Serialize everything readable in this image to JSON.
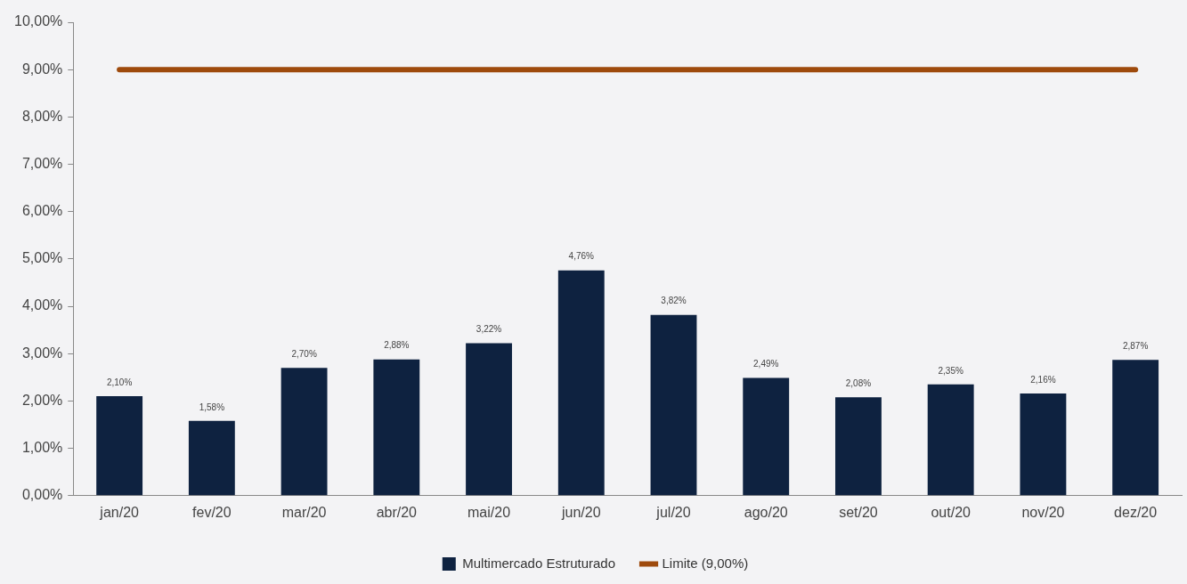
{
  "chart_data": {
    "type": "bar",
    "categories": [
      "jan/20",
      "fev/20",
      "mar/20",
      "abr/20",
      "mai/20",
      "jun/20",
      "jul/20",
      "ago/20",
      "set/20",
      "out/20",
      "nov/20",
      "dez/20"
    ],
    "series": [
      {
        "name": "Multimercado Estruturado",
        "color": "#0e2240",
        "values": [
          2.1,
          1.58,
          2.7,
          2.88,
          3.22,
          4.76,
          3.82,
          2.49,
          2.08,
          2.35,
          2.16,
          2.87
        ],
        "value_labels": [
          "2,10%",
          "1,58%",
          "2,70%",
          "2,88%",
          "3,22%",
          "4,76%",
          "3,82%",
          "2,49%",
          "2,08%",
          "2,35%",
          "2,16%",
          "2,87%"
        ]
      },
      {
        "name": "Limite (9,00%)",
        "type": "line",
        "color": "#9e4a0c",
        "values": [
          9,
          9,
          9,
          9,
          9,
          9,
          9,
          9,
          9,
          9,
          9,
          9
        ]
      }
    ],
    "ylim": [
      0,
      10
    ],
    "yticks": [
      {
        "value": 0,
        "label": "0,00%"
      },
      {
        "value": 1,
        "label": "1,00%"
      },
      {
        "value": 2,
        "label": "2,00%"
      },
      {
        "value": 3,
        "label": "3,00%"
      },
      {
        "value": 4,
        "label": "4,00%"
      },
      {
        "value": 5,
        "label": "5,00%"
      },
      {
        "value": 6,
        "label": "6,00%"
      },
      {
        "value": 7,
        "label": "7,00%"
      },
      {
        "value": 8,
        "label": "8,00%"
      },
      {
        "value": 9,
        "label": "9,00%"
      },
      {
        "value": 10,
        "label": "10,00%"
      }
    ],
    "grid": false,
    "legend": "bottom",
    "marker": "none"
  }
}
